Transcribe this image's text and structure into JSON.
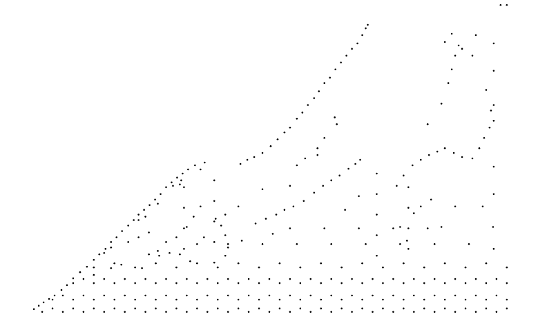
{
  "chart_data": {
    "type": "scatter",
    "color": "#000000",
    "marker": "circle",
    "grid": false,
    "tick_labels": false,
    "xlim": [
      0,
      779
    ],
    "ylim": [
      0,
      482
    ],
    "x": [
      48,
      55,
      62,
      70,
      78,
      88,
      96,
      105,
      115,
      125,
      135,
      143,
      152,
      160,
      168,
      176,
      185,
      193,
      200,
      208,
      216,
      224,
      232,
      240,
      248,
      256,
      264,
      272,
      282,
      296,
      150,
      160,
      200,
      210,
      250,
      260,
      228,
      262,
      290,
      185,
      200,
      215,
      228,
      240,
      255,
      270,
      280,
      290,
      285,
      260,
      230,
      215,
      245,
      295,
      275,
      160,
      175,
      135,
      205,
      348,
      358,
      368,
      380,
      392,
      402,
      412,
      420,
      430,
      438,
      446,
      455,
      462,
      470,
      478,
      486,
      494,
      502,
      510,
      518,
      525,
      530,
      533,
      370,
      385,
      400,
      412,
      425,
      440,
      455,
      468,
      480,
      492,
      505,
      515,
      522,
      430,
      442,
      460,
      485,
      488,
      470,
      460,
      395,
      350,
      330,
      320,
      312,
      345,
      380,
      420,
      500,
      520,
      575,
      585,
      598,
      610,
      622,
      634,
      645,
      658,
      670,
      685,
      695,
      702,
      710,
      716,
      620,
      640,
      650,
      655,
      660,
      665,
      645,
      655,
      670,
      685,
      690,
      726,
      735,
      705,
      712,
      600,
      610,
      625,
      660,
      700,
      715,
      580,
      590,
      640,
      60,
      75,
      90,
      105,
      120,
      135,
      150,
      165,
      180,
      195,
      210,
      225,
      240,
      255,
      270,
      285,
      300,
      315,
      330,
      345,
      360,
      375,
      390,
      405,
      420,
      435,
      450,
      465,
      480,
      495,
      510,
      525,
      540,
      555,
      570,
      585,
      600,
      615,
      630,
      645,
      660,
      675,
      690,
      705,
      720,
      735,
      75,
      90,
      105,
      120,
      135,
      150,
      165,
      180,
      195,
      210,
      225,
      240,
      255,
      270,
      285,
      300,
      315,
      330,
      345,
      360,
      375,
      390,
      405,
      420,
      435,
      450,
      465,
      480,
      495,
      510,
      525,
      540,
      555,
      570,
      585,
      600,
      615,
      630,
      645,
      660,
      675,
      690,
      705,
      720,
      735,
      105,
      120,
      135,
      150,
      165,
      180,
      195,
      210,
      225,
      240,
      255,
      270,
      285,
      300,
      315,
      330,
      345,
      360,
      375,
      390,
      405,
      420,
      435,
      450,
      465,
      480,
      495,
      510,
      525,
      540,
      555,
      570,
      585,
      600,
      615,
      630,
      645,
      660,
      675,
      690,
      705,
      720,
      735,
      135,
      165,
      195,
      225,
      255,
      285,
      315,
      345,
      375,
      405,
      435,
      465,
      495,
      525,
      555,
      585,
      615,
      645,
      675,
      705,
      735,
      266,
      266,
      266,
      266,
      310,
      310,
      310,
      310,
      310,
      326,
      326,
      326,
      546,
      546,
      546,
      546,
      546,
      592,
      592,
      592,
      592,
      716,
      716,
      716,
      716,
      716,
      716,
      330,
      380,
      430,
      480,
      530,
      580,
      630,
      680,
      420,
      470,
      520,
      570,
      620
    ],
    "values": [
      32,
      37,
      42,
      47,
      52,
      60,
      67,
      77,
      86,
      94,
      104,
      112,
      120,
      130,
      137,
      146,
      154,
      162,
      170,
      177,
      184,
      192,
      200,
      210,
      217,
      224,
      230,
      236,
      242,
      246,
      114,
      122,
      162,
      167,
      212,
      214,
      186,
      220,
      236,
      130,
      137,
      144,
      117,
      130,
      137,
      152,
      167,
      182,
      127,
      112,
      110,
      112,
      114,
      137,
      102,
      92,
      97,
      82,
      92,
      244,
      250,
      254,
      260,
      270,
      280,
      290,
      297,
      310,
      319,
      330,
      340,
      350,
      362,
      370,
      382,
      392,
      402,
      412,
      420,
      432,
      442,
      447,
      157,
      164,
      170,
      177,
      182,
      190,
      202,
      212,
      220,
      227,
      237,
      244,
      250,
      242,
      252,
      257,
      312,
      302,
      282,
      267,
      142,
      132,
      122,
      154,
      164,
      182,
      207,
      212,
      177,
      197,
      212,
      227,
      242,
      250,
      257,
      262,
      267,
      260,
      254,
      252,
      267,
      282,
      297,
      307,
      302,
      332,
      362,
      382,
      402,
      417,
      422,
      434,
      412,
      402,
      432,
      476,
      476,
      352,
      322,
      172,
      182,
      192,
      182,
      182,
      152,
      152,
      132,
      152,
      28,
      33,
      28,
      33,
      28,
      33,
      28,
      33,
      28,
      33,
      28,
      33,
      28,
      33,
      28,
      33,
      28,
      33,
      28,
      33,
      28,
      33,
      28,
      33,
      28,
      33,
      28,
      33,
      28,
      33,
      28,
      33,
      28,
      33,
      28,
      33,
      28,
      33,
      28,
      33,
      28,
      33,
      28,
      33,
      28,
      33,
      46,
      52,
      46,
      52,
      46,
      52,
      46,
      52,
      46,
      52,
      46,
      52,
      46,
      52,
      46,
      52,
      46,
      52,
      46,
      52,
      46,
      52,
      46,
      52,
      46,
      52,
      46,
      52,
      46,
      52,
      46,
      52,
      46,
      52,
      46,
      52,
      46,
      52,
      46,
      52,
      46,
      52,
      46,
      52,
      46,
      70,
      76,
      70,
      76,
      70,
      76,
      70,
      76,
      70,
      76,
      70,
      76,
      70,
      76,
      70,
      76,
      70,
      76,
      70,
      76,
      70,
      76,
      70,
      76,
      70,
      76,
      70,
      76,
      70,
      76,
      70,
      76,
      70,
      76,
      70,
      76,
      70,
      76,
      70,
      76,
      70,
      76,
      70,
      93,
      99,
      93,
      99,
      93,
      99,
      93,
      99,
      93,
      99,
      93,
      99,
      93,
      99,
      93,
      99,
      93,
      99,
      93,
      99,
      93,
      120,
      150,
      180,
      210,
      100,
      130,
      160,
      190,
      220,
      110,
      140,
      170,
      110,
      140,
      170,
      200,
      230,
      120,
      150,
      180,
      210,
      120,
      200,
      240,
      330,
      380,
      420,
      127,
      127,
      127,
      127,
      127,
      127,
      127,
      127,
      150,
      150,
      150,
      150,
      150
    ]
  }
}
